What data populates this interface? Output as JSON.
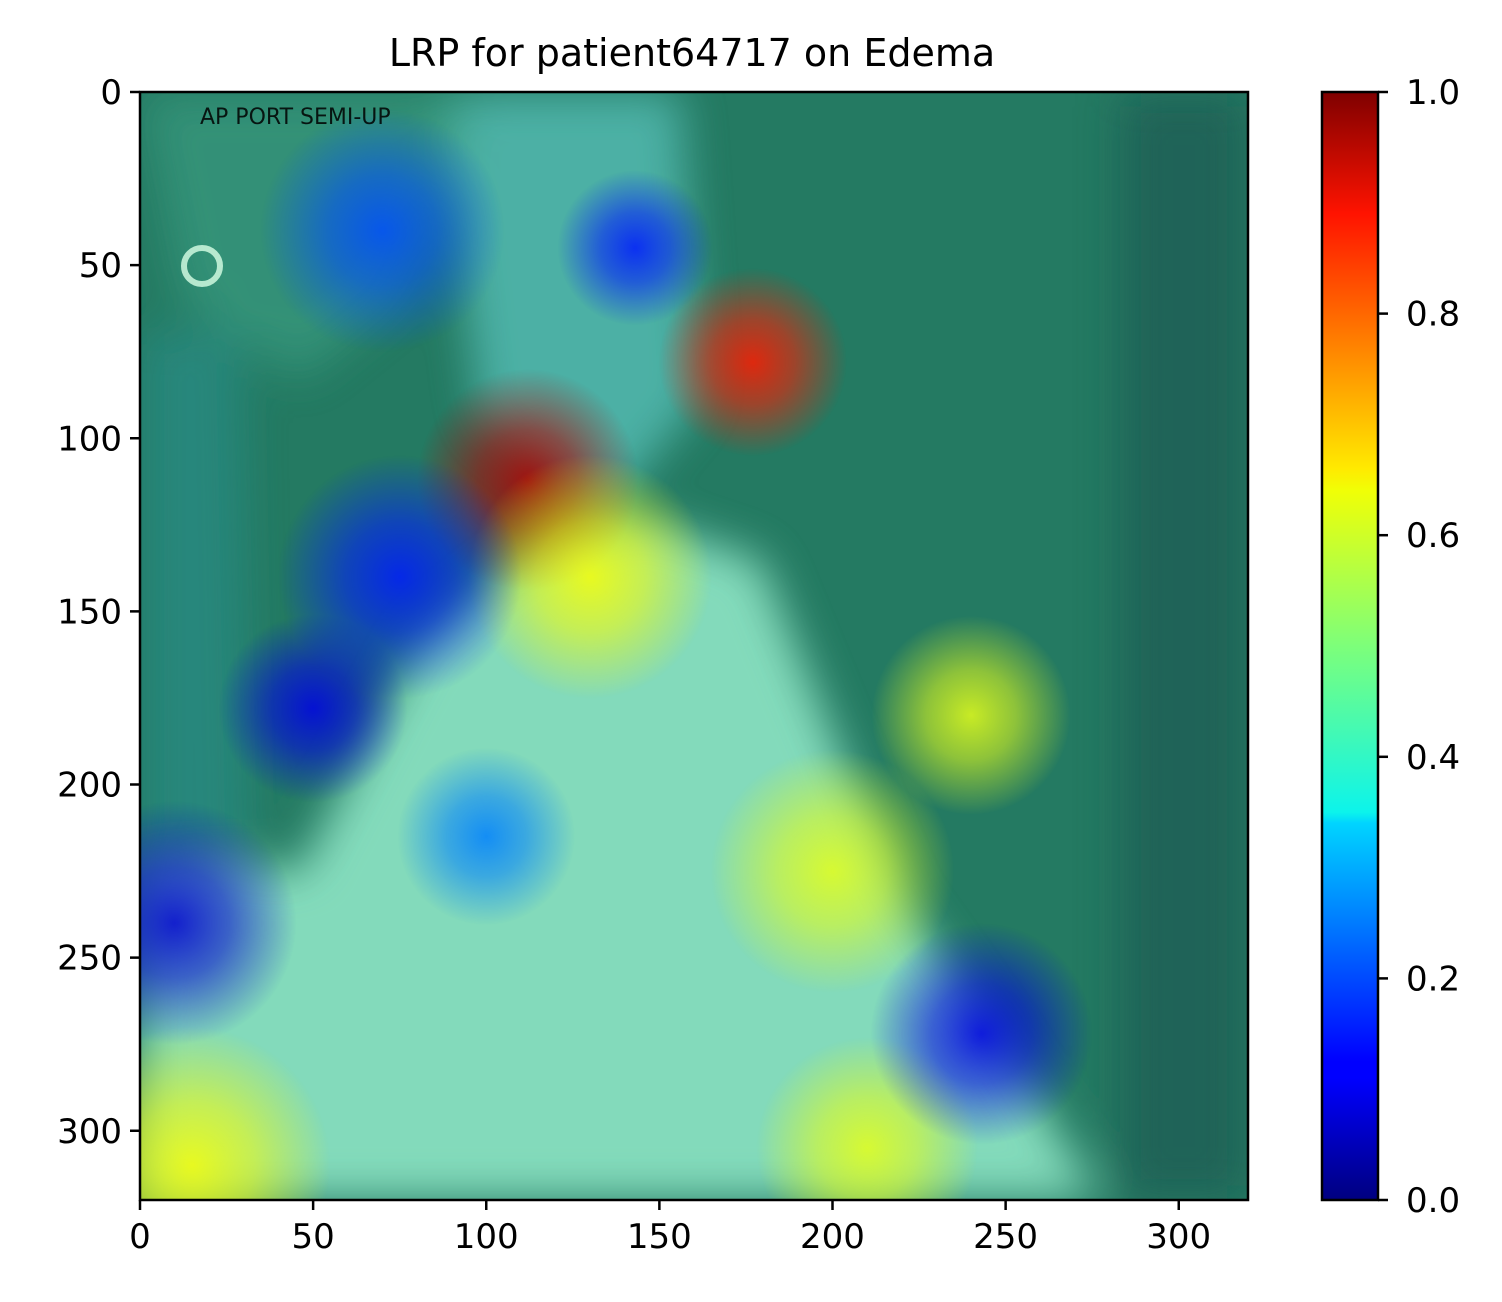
{
  "chart_data": {
    "type": "heatmap",
    "title": "LRP for patient64717 on Edema",
    "image_text": "AP PORT SEMI-UP",
    "xlim": [
      0,
      320
    ],
    "ylim": [
      320,
      0
    ],
    "xticks": [
      0,
      50,
      100,
      150,
      200,
      250,
      300
    ],
    "yticks": [
      0,
      50,
      100,
      150,
      200,
      250,
      300
    ],
    "colorbar": {
      "colormap": "jet",
      "range": [
        0.0,
        1.0
      ],
      "ticks": [
        "0.0",
        "0.2",
        "0.4",
        "0.6",
        "0.8",
        "1.0"
      ]
    },
    "hotspots": [
      {
        "x": 112,
        "y": 112,
        "value": 0.95,
        "spread": 20
      },
      {
        "x": 177,
        "y": 78,
        "value": 0.85,
        "spread": 17
      },
      {
        "x": 15,
        "y": 310,
        "value": 0.62,
        "spread": 25
      },
      {
        "x": 200,
        "y": 225,
        "value": 0.6,
        "spread": 22
      },
      {
        "x": 130,
        "y": 140,
        "value": 0.62,
        "spread": 22
      },
      {
        "x": 240,
        "y": 180,
        "value": 0.6,
        "spread": 18
      },
      {
        "x": 210,
        "y": 305,
        "value": 0.6,
        "spread": 20
      },
      {
        "x": 143,
        "y": 45,
        "value": 0.15,
        "spread": 14
      },
      {
        "x": 50,
        "y": 178,
        "value": 0.1,
        "spread": 17
      },
      {
        "x": 75,
        "y": 140,
        "value": 0.15,
        "spread": 22
      },
      {
        "x": 10,
        "y": 240,
        "value": 0.08,
        "spread": 22
      },
      {
        "x": 243,
        "y": 272,
        "value": 0.1,
        "spread": 20
      },
      {
        "x": 70,
        "y": 40,
        "value": 0.2,
        "spread": 22
      },
      {
        "x": 100,
        "y": 215,
        "value": 0.25,
        "spread": 16
      }
    ]
  }
}
